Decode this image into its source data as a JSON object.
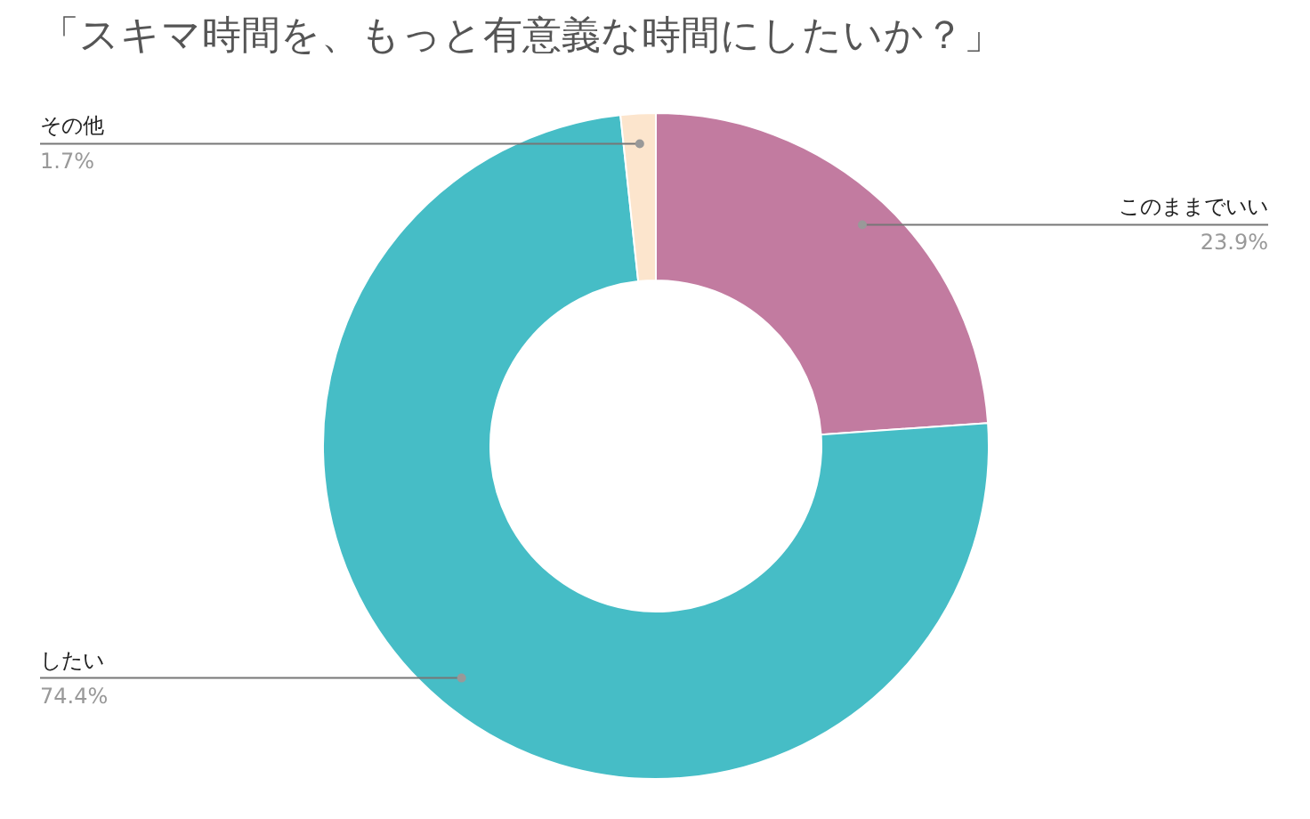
{
  "chart_data": {
    "type": "donut",
    "title": "「スキマ時間を、もっと有意義な時間にしたいか？」",
    "categories": [
      "このままでいい",
      "したい",
      "その他"
    ],
    "values": [
      23.9,
      74.4,
      1.7
    ],
    "value_labels": [
      "23.9%",
      "74.4%",
      "1.7%"
    ],
    "colors": [
      "#c27ba0",
      "#46bdc6",
      "#fce5cd"
    ]
  }
}
